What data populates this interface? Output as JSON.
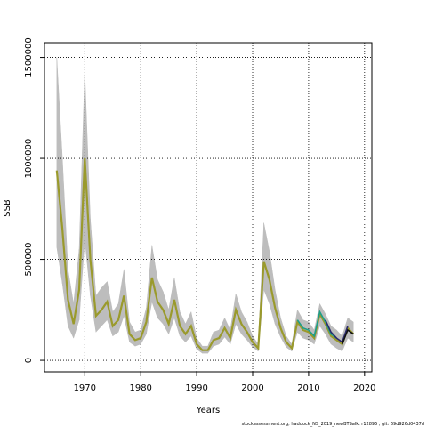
{
  "chart_data": {
    "type": "line",
    "x_label": "Years",
    "y_label": "SSB",
    "footer": "stockassessment.org, haddock_NS_2019_newBTSalk, r12895 , git: 69d926d0437d",
    "xlim": [
      1962.8,
      2021.3
    ],
    "xticks": [
      1970,
      1980,
      1990,
      2000,
      2010,
      2020
    ],
    "ylim": [
      -57000,
      1573000
    ],
    "yticks": [
      0,
      500000,
      1000000,
      1500000
    ],
    "grid": true,
    "band": {
      "color": "#bdbdbd",
      "x": [
        1965,
        1966,
        1967,
        1968,
        1969,
        1970,
        1971,
        1972,
        1973,
        1974,
        1975,
        1976,
        1977,
        1978,
        1979,
        1980,
        1981,
        1982,
        1983,
        1984,
        1985,
        1986,
        1987,
        1988,
        1989,
        1990,
        1991,
        1992,
        1993,
        1994,
        1995,
        1996,
        1997,
        1998,
        1999,
        2000,
        2001,
        2002,
        2003,
        2004,
        2005,
        2006,
        2007,
        2008,
        2009,
        2010,
        2011,
        2012,
        2013,
        2014,
        2015,
        2016,
        2017,
        2018
      ],
      "upper": [
        1500000,
        1000000,
        450000,
        280000,
        550000,
        1430000,
        700000,
        320000,
        360000,
        390000,
        240000,
        280000,
        450000,
        190000,
        140000,
        150000,
        260000,
        570000,
        400000,
        340000,
        250000,
        410000,
        240000,
        180000,
        240000,
        110000,
        70000,
        70000,
        140000,
        150000,
        210000,
        150000,
        330000,
        240000,
        190000,
        120000,
        80000,
        680000,
        540000,
        350000,
        210000,
        120000,
        80000,
        250000,
        200000,
        190000,
        150000,
        280000,
        230000,
        170000,
        150000,
        120000,
        210000,
        190000
      ],
      "lower": [
        560000,
        380000,
        170000,
        110000,
        200000,
        600000,
        320000,
        140000,
        170000,
        200000,
        120000,
        140000,
        220000,
        90000,
        70000,
        80000,
        130000,
        290000,
        210000,
        180000,
        130000,
        210000,
        120000,
        90000,
        120000,
        55000,
        35000,
        35000,
        70000,
        80000,
        115000,
        80000,
        180000,
        130000,
        100000,
        65000,
        45000,
        350000,
        280000,
        180000,
        115000,
        65000,
        45000,
        140000,
        110000,
        100000,
        80000,
        170000,
        130000,
        80000,
        60000,
        45000,
        110000,
        90000
      ]
    },
    "series": [
      {
        "color": "#9a9a2c",
        "x": [
          1965,
          1966,
          1967,
          1968,
          1969,
          1970,
          1971,
          1972,
          1973,
          1974,
          1975,
          1976,
          1977,
          1978,
          1979,
          1980,
          1981,
          1982,
          1983,
          1984,
          1985,
          1986,
          1987,
          1988,
          1989,
          1990,
          1991,
          1992,
          1993,
          1994,
          1995,
          1996,
          1997,
          1998,
          1999,
          2000,
          2001,
          2002,
          2003,
          2004,
          2005,
          2006,
          2007,
          2008,
          2009,
          2010,
          2011,
          2012,
          2013,
          2014,
          2015,
          2016,
          2017,
          2018
        ],
        "values": [
          940000,
          650000,
          300000,
          180000,
          350000,
          1000000,
          500000,
          220000,
          250000,
          290000,
          170000,
          200000,
          320000,
          130000,
          100000,
          110000,
          190000,
          410000,
          290000,
          250000,
          180000,
          300000,
          170000,
          130000,
          170000,
          80000,
          50000,
          50000,
          100000,
          110000,
          160000,
          110000,
          250000,
          180000,
          140000,
          90000,
          60000,
          490000,
          400000,
          260000,
          160000,
          90000,
          60000,
          190000,
          150000,
          140000,
          110000,
          230000,
          180000,
          120000,
          100000,
          80000,
          160000,
          130000
        ]
      },
      {
        "color": "#1f9e89",
        "x": [
          2008,
          2009,
          2010,
          2011,
          2012,
          2013,
          2014,
          2015
        ],
        "values": [
          200000,
          160000,
          150000,
          120000,
          240000,
          190000,
          130000,
          110000
        ]
      },
      {
        "color": "#2c2c6e",
        "x": [
          2013,
          2014,
          2015,
          2016,
          2017
        ],
        "values": [
          200000,
          140000,
          110000,
          90000,
          170000
        ]
      },
      {
        "color": "#111111",
        "x": [
          2016,
          2017,
          2018
        ],
        "values": [
          80000,
          150000,
          130000
        ]
      }
    ]
  }
}
